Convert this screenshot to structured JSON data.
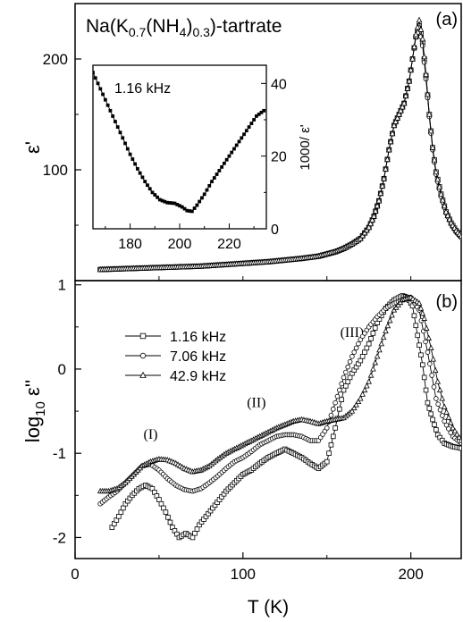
{
  "chart_data": [
    {
      "panel": "(a)",
      "type": "line",
      "title": "",
      "annotation": "Na(K0.7(NH4)0.3)-tartrate",
      "annotation_parts": {
        "base": "Na(K",
        "sub1": "0.7",
        "mid": "(NH",
        "sub2": "4",
        "close": ")",
        "sub3": "0.3",
        "tail": ")-tartrate"
      },
      "ylabel": "ε'",
      "xlim": [
        0,
        230
      ],
      "ylim": [
        0,
        250
      ],
      "yticks": [
        100,
        200
      ],
      "ytick_labels": [
        "100",
        "200"
      ],
      "series": [
        {
          "marker": "square",
          "x": [
            15,
            25,
            35,
            45,
            55,
            65,
            75,
            85,
            95,
            105,
            115,
            125,
            135,
            145,
            150,
            155,
            160,
            165,
            170,
            175,
            178,
            181,
            184,
            187,
            190,
            193,
            196,
            199,
            201,
            203,
            205,
            207,
            209,
            211,
            213,
            215,
            218,
            221,
            224,
            227,
            230
          ],
          "y": [
            10,
            10.5,
            11,
            11.5,
            12,
            12.5,
            13,
            14,
            15,
            16,
            17,
            18.5,
            20,
            22,
            24,
            26,
            29,
            33,
            38,
            48,
            58,
            72,
            92,
            118,
            140,
            150,
            160,
            180,
            200,
            220,
            230,
            215,
            185,
            150,
            120,
            98,
            78,
            62,
            52,
            45,
            40
          ]
        },
        {
          "marker": "circle",
          "x": [
            15,
            25,
            35,
            45,
            55,
            65,
            75,
            85,
            95,
            105,
            115,
            125,
            135,
            145,
            150,
            155,
            160,
            165,
            170,
            175,
            178,
            181,
            184,
            187,
            190,
            193,
            196,
            199,
            201,
            203,
            205,
            207,
            209,
            211,
            213,
            215,
            218,
            221,
            224,
            227,
            230
          ],
          "y": [
            10,
            10.5,
            11,
            11.5,
            12,
            12.5,
            13,
            14,
            15,
            16,
            17,
            18.5,
            20,
            22,
            24,
            26,
            29,
            33,
            38,
            48,
            58,
            72,
            92,
            118,
            140,
            150,
            160,
            180,
            200,
            220,
            228,
            212,
            182,
            148,
            118,
            96,
            76,
            61,
            51,
            44,
            39
          ]
        },
        {
          "marker": "triangle",
          "x": [
            15,
            25,
            35,
            45,
            55,
            65,
            75,
            85,
            95,
            105,
            115,
            125,
            135,
            145,
            150,
            155,
            160,
            165,
            170,
            175,
            178,
            181,
            184,
            187,
            190,
            193,
            196,
            199,
            201,
            203,
            205,
            207,
            209,
            211,
            213,
            215,
            218,
            221,
            224,
            227,
            230
          ],
          "y": [
            10,
            10.5,
            11,
            11.5,
            12,
            12.5,
            13,
            14,
            15,
            16,
            17,
            18.5,
            20,
            22,
            24,
            26,
            29,
            33,
            38,
            48,
            58,
            72,
            92,
            118,
            140,
            150,
            160,
            180,
            200,
            222,
            235,
            218,
            186,
            150,
            120,
            98,
            78,
            62,
            52,
            45,
            40
          ]
        }
      ]
    },
    {
      "panel": "inset",
      "type": "line",
      "title": "",
      "annotation": "1.16 kHz",
      "ylabel": "1000/ ε'",
      "xlim": [
        165,
        235
      ],
      "ylim": [
        0,
        45
      ],
      "xticks": [
        180,
        200,
        220
      ],
      "xtick_labels": [
        "180",
        "200",
        "220"
      ],
      "yticks": [
        0,
        20,
        40
      ],
      "ytick_labels": [
        "0",
        "20",
        "40"
      ],
      "series": [
        {
          "marker": "square",
          "x": [
            165,
            168,
            171,
            174,
            177,
            180,
            183,
            186,
            189,
            192,
            195,
            198,
            201,
            203,
            205,
            207,
            210,
            213,
            216,
            219,
            222,
            225,
            228,
            231,
            234
          ],
          "y": [
            43,
            38.5,
            34,
            29.5,
            25,
            20.5,
            16.5,
            13,
            10,
            8,
            7.2,
            7,
            6,
            5,
            4.8,
            6.5,
            9.5,
            13,
            16,
            19,
            22,
            25,
            28,
            31,
            32.5
          ]
        }
      ]
    },
    {
      "panel": "(b)",
      "type": "line",
      "title": "",
      "ylabel": "log10 ε''",
      "ylabel_parts": {
        "base": "log",
        "sub": "10",
        "tail": " ε''"
      },
      "xlabel": "T (K)",
      "xlim": [
        0,
        230
      ],
      "ylim": [
        -2.25,
        1.05
      ],
      "xticks": [
        0,
        100,
        200
      ],
      "xtick_labels": [
        "0",
        "100",
        "200"
      ],
      "yticks": [
        -2,
        -1,
        0,
        1
      ],
      "ytick_labels": [
        "-2",
        "-1",
        "0",
        "1"
      ],
      "annotations": [
        {
          "text": "(I)",
          "x": 45,
          "y": -0.83
        },
        {
          "text": "(II)",
          "x": 108,
          "y": -0.45
        },
        {
          "text": "(III)",
          "x": 165,
          "y": 0.38
        }
      ],
      "legend": {
        "placement": "top-left"
      },
      "series": [
        {
          "name": "1.16 kHz",
          "marker": "square",
          "x": [
            22,
            26,
            30,
            34,
            38,
            42,
            46,
            50,
            54,
            58,
            62,
            66,
            70,
            74,
            78,
            82,
            86,
            90,
            95,
            100,
            105,
            110,
            115,
            120,
            125,
            130,
            135,
            140,
            145,
            150,
            155,
            160,
            165,
            170,
            175,
            180,
            185,
            190,
            195,
            198,
            201,
            204,
            207,
            210,
            213,
            216,
            220,
            225,
            230
          ],
          "y": [
            -1.88,
            -1.75,
            -1.6,
            -1.5,
            -1.42,
            -1.38,
            -1.42,
            -1.55,
            -1.7,
            -1.88,
            -2.0,
            -1.95,
            -2.0,
            -1.85,
            -1.75,
            -1.65,
            -1.55,
            -1.45,
            -1.35,
            -1.25,
            -1.2,
            -1.12,
            -1.05,
            -1.0,
            -0.95,
            -1.0,
            -1.05,
            -1.12,
            -1.18,
            -1.1,
            -0.7,
            -0.25,
            -0.05,
            0.1,
            0.3,
            0.55,
            0.72,
            0.82,
            0.87,
            0.85,
            0.75,
            0.4,
            0.05,
            -0.4,
            -0.6,
            -0.78,
            -0.88,
            -0.92,
            -0.94
          ]
        },
        {
          "name": "7.06 kHz",
          "marker": "circle",
          "x": [
            15,
            20,
            25,
            30,
            35,
            40,
            45,
            50,
            55,
            60,
            65,
            70,
            75,
            80,
            85,
            90,
            95,
            100,
            105,
            110,
            115,
            120,
            125,
            130,
            135,
            140,
            145,
            150,
            155,
            160,
            165,
            170,
            175,
            180,
            185,
            190,
            195,
            200,
            205,
            210,
            215,
            220,
            225,
            230
          ],
          "y": [
            -1.6,
            -1.52,
            -1.45,
            -1.35,
            -1.25,
            -1.15,
            -1.13,
            -1.2,
            -1.3,
            -1.38,
            -1.43,
            -1.45,
            -1.42,
            -1.35,
            -1.27,
            -1.18,
            -1.1,
            -1.05,
            -0.98,
            -0.9,
            -0.85,
            -0.8,
            -0.78,
            -0.78,
            -0.8,
            -0.85,
            -0.85,
            -0.7,
            -0.4,
            -0.1,
            0.15,
            0.35,
            0.5,
            0.62,
            0.72,
            0.78,
            0.82,
            0.85,
            0.7,
            0.2,
            -0.35,
            -0.62,
            -0.8,
            -0.88
          ]
        },
        {
          "name": "42.9 kHz",
          "marker": "triangle",
          "x": [
            15,
            20,
            25,
            30,
            35,
            40,
            45,
            50,
            55,
            60,
            65,
            70,
            75,
            80,
            85,
            90,
            95,
            100,
            105,
            110,
            115,
            120,
            125,
            130,
            135,
            140,
            145,
            150,
            155,
            160,
            165,
            170,
            175,
            180,
            185,
            190,
            195,
            200,
            205,
            208,
            212,
            216,
            220,
            225,
            230
          ],
          "y": [
            -1.45,
            -1.45,
            -1.42,
            -1.35,
            -1.25,
            -1.15,
            -1.1,
            -1.07,
            -1.08,
            -1.12,
            -1.18,
            -1.22,
            -1.2,
            -1.15,
            -1.07,
            -1.0,
            -0.95,
            -0.9,
            -0.85,
            -0.8,
            -0.75,
            -0.7,
            -0.66,
            -0.62,
            -0.6,
            -0.62,
            -0.65,
            -0.62,
            -0.6,
            -0.58,
            -0.5,
            -0.35,
            -0.15,
            0.15,
            0.45,
            0.7,
            0.82,
            0.85,
            0.78,
            0.6,
            0.25,
            -0.15,
            -0.45,
            -0.7,
            -0.85
          ]
        }
      ]
    }
  ]
}
